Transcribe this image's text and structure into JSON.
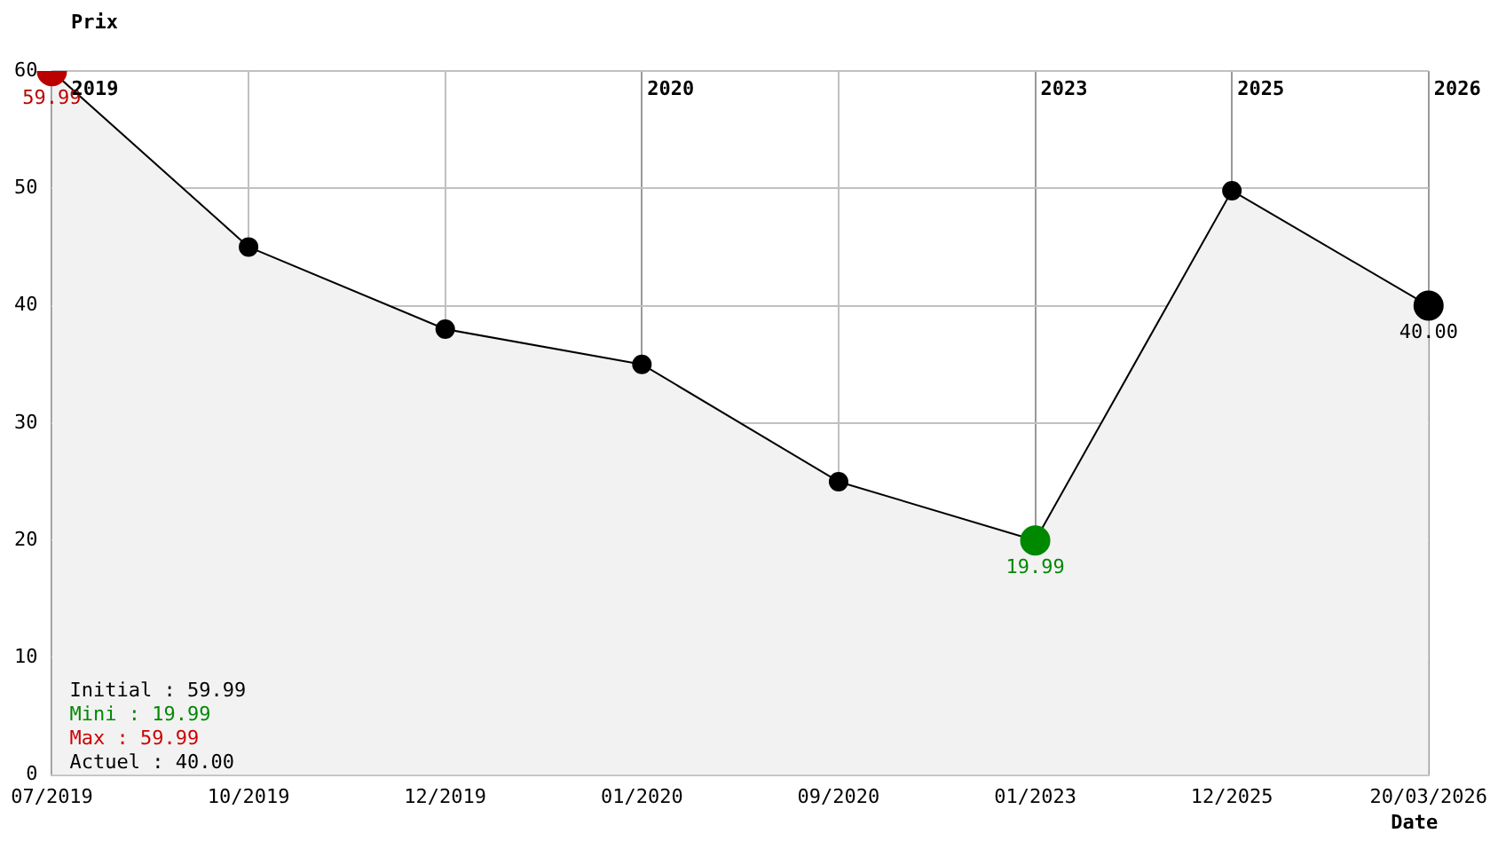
{
  "chart_data": {
    "type": "area",
    "xlabel": "Date",
    "ylabel": "Prix",
    "categories": [
      "07/2019",
      "10/2019",
      "12/2019",
      "01/2020",
      "09/2020",
      "01/2023",
      "12/2025",
      "20/03/2026"
    ],
    "series": [
      {
        "color": "#000000",
        "colors": [
          "#bb0000",
          "#000000",
          "#000000",
          "#000000",
          "#000000",
          "#008800",
          "#000000",
          "#000000"
        ],
        "values": [
          59.99,
          45,
          38,
          35,
          25,
          19.99,
          49.8,
          40
        ],
        "value_labels": [
          "59.99",
          null,
          null,
          null,
          null,
          "19.99",
          null,
          "40.00"
        ]
      }
    ],
    "ylim": [
      0,
      60
    ],
    "yticks": [
      0,
      10,
      20,
      30,
      40,
      50,
      60
    ],
    "grid": true,
    "legend": false,
    "marker": "circle",
    "annotations": [
      "2019",
      "2020",
      "2023",
      "2025",
      "2026",
      "Initial : 59.99",
      "Mini : 19.99",
      "Max : 59.99",
      "Actuel : 40.00"
    ]
  }
}
